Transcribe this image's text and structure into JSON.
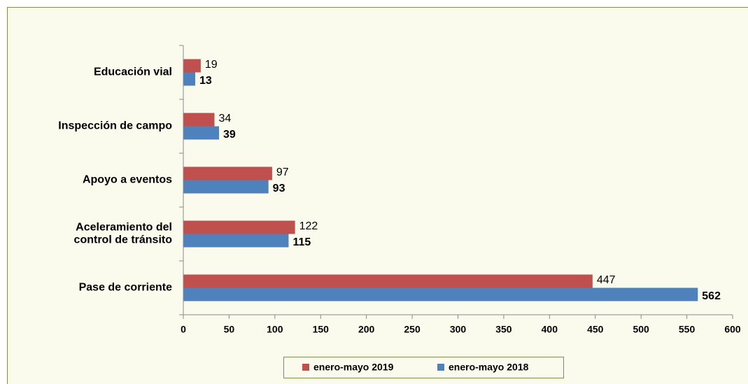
{
  "chart_data": {
    "type": "bar",
    "orientation": "horizontal",
    "categories": [
      "Educación vial",
      "Inspección de campo",
      "Apoyo a eventos",
      "Aceleramiento del\ncontrol de tránsito",
      "Pase de corriente"
    ],
    "series": [
      {
        "name": "enero-mayo 2019",
        "color": "#c0504d",
        "values": [
          19,
          34,
          97,
          122,
          447
        ]
      },
      {
        "name": "enero-mayo 2018",
        "color": "#4f81bd",
        "values": [
          13,
          39,
          93,
          115,
          562
        ]
      }
    ],
    "xlim": [
      0,
      600
    ],
    "xticks": [
      0,
      50,
      100,
      150,
      200,
      250,
      300,
      350,
      400,
      450,
      500,
      550,
      600
    ],
    "legend": "bottom"
  }
}
